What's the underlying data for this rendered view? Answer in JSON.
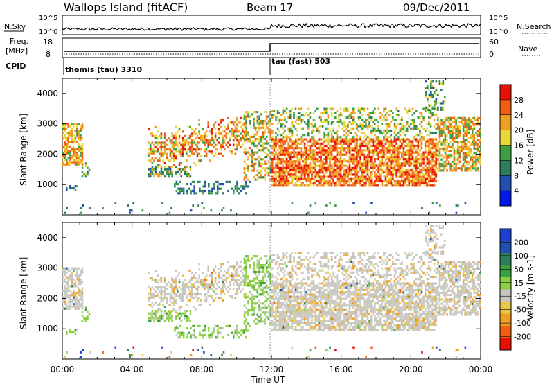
{
  "header": {
    "station": "Wallops Island (fitACF)",
    "beam": "Beam 17",
    "date": "09/Dec/2011"
  },
  "top_panel": {
    "left_label": "N.Sky",
    "right_label": "N.Search",
    "ticks_left": [
      "10^5",
      "10^0"
    ],
    "ticks_right": [
      "10^5",
      "10^0"
    ]
  },
  "freq_panel": {
    "left_label_line1": "Freq.",
    "left_label_line2": "[MHz]",
    "left_ticks": [
      "18",
      "8"
    ],
    "right_label": "Nave",
    "right_ticks": [
      "60",
      "0"
    ],
    "cpid_label": "CPID",
    "modes": [
      {
        "name": "themis (tau) 3310",
        "start_hour": 0
      },
      {
        "name": "tau (fast) 503",
        "start_hour": 12
      }
    ]
  },
  "colors": {
    "power_scale": [
      "#0018e8",
      "#1f4fb0",
      "#2e7d5a",
      "#3aa040",
      "#e8d838",
      "#f0a020",
      "#f06010",
      "#e81000"
    ],
    "velocity_scale": [
      "#e81000",
      "#f06010",
      "#f0a020",
      "#e8c848",
      "#c8c8c0",
      "#8ad040",
      "#3aa040",
      "#2e7d5a",
      "#1f4fb0",
      "#1f3fd0"
    ]
  },
  "chart_data": [
    {
      "type": "heatmap",
      "name": "Power",
      "ylabel": "Slant Range [km]",
      "xlabel": "Time UT",
      "x_ticks": [
        "00:00",
        "04:00",
        "08:00",
        "12:00",
        "16:00",
        "20:00",
        "00:00"
      ],
      "y_ticks": [
        "1000",
        "2000",
        "3000",
        "4000"
      ],
      "ylim": [
        0,
        4500
      ],
      "xlim_hours": [
        0,
        24
      ],
      "colorbar_label": "Power [dB]",
      "colorbar_ticks": [
        "28",
        "24",
        "20",
        "16",
        "12",
        "8",
        "4"
      ],
      "colorbar_range": [
        0,
        32
      ]
    },
    {
      "type": "heatmap",
      "name": "Velocity",
      "ylabel": "Slant Range [km]",
      "xlabel": "Time UT",
      "x_ticks": [
        "00:00",
        "04:00",
        "08:00",
        "12:00",
        "16:00",
        "20:00",
        "00:00"
      ],
      "y_ticks": [
        "1000",
        "2000",
        "3000",
        "4000"
      ],
      "ylim": [
        0,
        4500
      ],
      "xlim_hours": [
        0,
        24
      ],
      "colorbar_label": "Velocity [m s-1]",
      "colorbar_ticks": [
        "200",
        "100",
        "50",
        "15",
        "-15",
        "-50",
        "-100",
        "-200"
      ]
    }
  ],
  "scatter_regions": [
    {
      "h0": 0.0,
      "h1": 1.2,
      "r0": 1700,
      "r1": 3100,
      "density": 0.7,
      "pw": [
        14,
        28
      ],
      "vel": "grey"
    },
    {
      "h0": 0.1,
      "h1": 0.9,
      "r0": 850,
      "r1": 1050,
      "density": 0.35,
      "pw": [
        4,
        14
      ],
      "vel": "green"
    },
    {
      "h0": 1.0,
      "h1": 1.6,
      "r0": 1300,
      "r1": 1800,
      "density": 0.4,
      "pw": [
        6,
        20
      ],
      "vel": "green"
    },
    {
      "h0": 4.9,
      "h1": 10.6,
      "r0": 1600,
      "r1": 3300,
      "density": 0.75,
      "pw": [
        14,
        30
      ],
      "vel": "grey",
      "arc": true
    },
    {
      "h0": 4.9,
      "h1": 7.4,
      "r0": 1300,
      "r1": 1700,
      "density": 0.55,
      "pw": [
        6,
        24
      ],
      "vel": "green"
    },
    {
      "h0": 6.4,
      "h1": 10.8,
      "r0": 750,
      "r1": 1200,
      "density": 0.35,
      "pw": [
        4,
        14
      ],
      "vel": "green"
    },
    {
      "h0": 10.4,
      "h1": 12.0,
      "r0": 1200,
      "r1": 3500,
      "density": 0.45,
      "pw": [
        10,
        28
      ],
      "vel": "green"
    },
    {
      "h0": 12.0,
      "h1": 21.5,
      "r0": 1000,
      "r1": 2600,
      "density": 0.8,
      "pw": [
        18,
        32
      ],
      "vel": "grey"
    },
    {
      "h0": 12.0,
      "h1": 21.5,
      "r0": 2600,
      "r1": 3600,
      "density": 0.35,
      "pw": [
        10,
        24
      ],
      "vel": "grey"
    },
    {
      "h0": 21.5,
      "h1": 24.0,
      "r0": 1500,
      "r1": 3300,
      "density": 0.7,
      "pw": [
        12,
        28
      ],
      "vel": "grey"
    },
    {
      "h0": 20.8,
      "h1": 22.0,
      "r0": 3500,
      "r1": 4500,
      "density": 0.3,
      "pw": [
        6,
        20
      ],
      "vel": "grey"
    },
    {
      "h0": 0.0,
      "h1": 24.0,
      "r0": 100,
      "r1": 500,
      "density": 0.04,
      "pw": [
        4,
        16
      ],
      "vel": "mixed"
    }
  ]
}
